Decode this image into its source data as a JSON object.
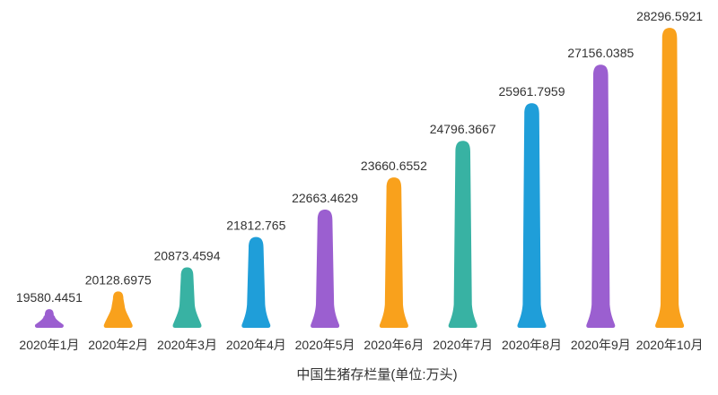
{
  "chart_data": {
    "type": "bar",
    "variant": "pictorial-peak-bars",
    "title": "中国生猪存栏量(单位:万头)",
    "xlabel": "中国生猪存栏量(单位:万头)",
    "ylabel": "",
    "legend": "none",
    "grid": false,
    "background": "#FFFFFF",
    "text_color": "#333333",
    "axis_implied_ylim": [
      19000,
      28300
    ],
    "categories": [
      "2020年1月",
      "2020年2月",
      "2020年3月",
      "2020年4月",
      "2020年5月",
      "2020年6月",
      "2020年7月",
      "2020年8月",
      "2020年9月",
      "2020年10月"
    ],
    "values": [
      19580.4451,
      20128.6975,
      20873.4594,
      21812.765,
      22663.4629,
      23660.6552,
      24796.3667,
      25961.7959,
      27156.0385,
      28296.5921
    ],
    "value_labels": [
      "19580.4451",
      "20128.6975",
      "20873.4594",
      "21812.765",
      "22663.4629",
      "23660.6552",
      "24796.3667",
      "25961.7959",
      "27156.0385",
      "28296.5921"
    ],
    "palette": [
      "#9B5FD0",
      "#F9A11C",
      "#38B2A3",
      "#1F9ED9"
    ],
    "bar_colors": [
      "#9B5FD0",
      "#F9A11C",
      "#38B2A3",
      "#1F9ED9",
      "#9B5FD0",
      "#F9A11C",
      "#38B2A3",
      "#1F9ED9",
      "#9B5FD0",
      "#F9A11C"
    ]
  }
}
